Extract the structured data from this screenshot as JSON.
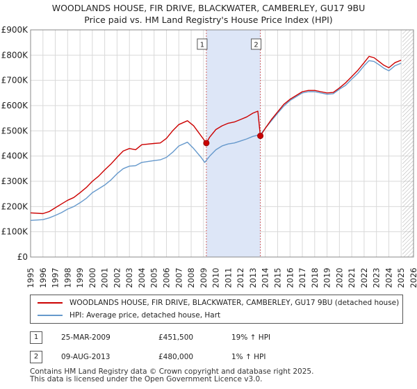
{
  "chart_data": {
    "type": "line",
    "title": "WOODLANDS HOUSE, FIR DRIVE, BLACKWATER, CAMBERLEY, GU17 9BU",
    "subtitle": "Price paid vs. HM Land Registry's House Price Index (HPI)",
    "xlim": [
      1995,
      2026
    ],
    "ylim": [
      0,
      900000
    ],
    "x_ticks": [
      "1995",
      "1996",
      "1997",
      "1998",
      "1999",
      "2000",
      "2001",
      "2002",
      "2003",
      "2004",
      "2005",
      "2006",
      "2007",
      "2008",
      "2009",
      "2010",
      "2011",
      "2012",
      "2013",
      "2014",
      "2015",
      "2016",
      "2017",
      "2018",
      "2019",
      "2020",
      "2021",
      "2022",
      "2023",
      "2024",
      "2025",
      "2026"
    ],
    "y_ticks": [
      {
        "value": 0,
        "label": "£0"
      },
      {
        "value": 100000,
        "label": "£100K"
      },
      {
        "value": 200000,
        "label": "£200K"
      },
      {
        "value": 300000,
        "label": "£300K"
      },
      {
        "value": 400000,
        "label": "£400K"
      },
      {
        "value": 500000,
        "label": "£500K"
      },
      {
        "value": 600000,
        "label": "£600K"
      },
      {
        "value": 700000,
        "label": "£700K"
      },
      {
        "value": 800000,
        "label": "£800K"
      },
      {
        "value": 900000,
        "label": "£900K"
      }
    ],
    "grid": true,
    "shaded_region": {
      "x0": 2009.23,
      "x1": 2013.6
    },
    "hatched_region": {
      "x0": 2025.1,
      "x1": 2026
    },
    "series": [
      {
        "name": "WOODLANDS HOUSE, FIR DRIVE, BLACKWATER, CAMBERLEY, GU17 9BU (detached house)",
        "color": "#cc0000",
        "points": [
          [
            1995,
            175000
          ],
          [
            1996,
            172000
          ],
          [
            1996.5,
            180000
          ],
          [
            1997,
            195000
          ],
          [
            1997.5,
            210000
          ],
          [
            1998,
            225000
          ],
          [
            1998.5,
            236000
          ],
          [
            1999,
            255000
          ],
          [
            1999.5,
            275000
          ],
          [
            2000,
            300000
          ],
          [
            2000.5,
            320000
          ],
          [
            2001,
            345000
          ],
          [
            2001.5,
            368000
          ],
          [
            2002,
            395000
          ],
          [
            2002.5,
            420000
          ],
          [
            2003,
            430000
          ],
          [
            2003.5,
            425000
          ],
          [
            2004,
            445000
          ],
          [
            2005,
            450000
          ],
          [
            2005.5,
            452000
          ],
          [
            2006,
            470000
          ],
          [
            2006.5,
            500000
          ],
          [
            2007,
            525000
          ],
          [
            2007.7,
            540000
          ],
          [
            2008.2,
            520000
          ],
          [
            2008.8,
            480000
          ],
          [
            2009.23,
            451500
          ],
          [
            2009.5,
            475000
          ],
          [
            2010,
            505000
          ],
          [
            2010.5,
            520000
          ],
          [
            2011,
            530000
          ],
          [
            2011.5,
            535000
          ],
          [
            2012,
            545000
          ],
          [
            2012.5,
            555000
          ],
          [
            2013,
            570000
          ],
          [
            2013.4,
            578000
          ],
          [
            2013.6,
            480000
          ],
          [
            2014,
            510000
          ],
          [
            2014.5,
            545000
          ],
          [
            2015,
            575000
          ],
          [
            2015.5,
            605000
          ],
          [
            2016,
            625000
          ],
          [
            2016.5,
            640000
          ],
          [
            2017,
            655000
          ],
          [
            2017.5,
            660000
          ],
          [
            2018,
            660000
          ],
          [
            2018.5,
            655000
          ],
          [
            2019,
            650000
          ],
          [
            2019.5,
            652000
          ],
          [
            2020,
            670000
          ],
          [
            2020.5,
            690000
          ],
          [
            2021,
            715000
          ],
          [
            2021.5,
            740000
          ],
          [
            2022,
            770000
          ],
          [
            2022.4,
            795000
          ],
          [
            2022.8,
            790000
          ],
          [
            2023.2,
            775000
          ],
          [
            2023.6,
            760000
          ],
          [
            2024,
            750000
          ],
          [
            2024.5,
            770000
          ],
          [
            2025.0,
            780000
          ]
        ]
      },
      {
        "name": "HPI: Average price, detached house, Hart",
        "color": "#6699cc",
        "points": [
          [
            1995,
            145000
          ],
          [
            1996,
            148000
          ],
          [
            1996.5,
            155000
          ],
          [
            1997,
            165000
          ],
          [
            1997.5,
            176000
          ],
          [
            1998,
            190000
          ],
          [
            1998.5,
            200000
          ],
          [
            1999,
            215000
          ],
          [
            1999.5,
            232000
          ],
          [
            2000,
            255000
          ],
          [
            2000.5,
            270000
          ],
          [
            2001,
            285000
          ],
          [
            2001.5,
            305000
          ],
          [
            2002,
            330000
          ],
          [
            2002.5,
            350000
          ],
          [
            2003,
            360000
          ],
          [
            2003.5,
            362000
          ],
          [
            2004,
            375000
          ],
          [
            2005,
            382000
          ],
          [
            2005.5,
            385000
          ],
          [
            2006,
            395000
          ],
          [
            2006.5,
            415000
          ],
          [
            2007,
            440000
          ],
          [
            2007.7,
            455000
          ],
          [
            2008.2,
            430000
          ],
          [
            2008.8,
            395000
          ],
          [
            2009.1,
            375000
          ],
          [
            2009.5,
            400000
          ],
          [
            2010,
            425000
          ],
          [
            2010.5,
            440000
          ],
          [
            2011,
            448000
          ],
          [
            2011.5,
            452000
          ],
          [
            2012,
            460000
          ],
          [
            2012.5,
            468000
          ],
          [
            2013,
            478000
          ],
          [
            2013.6,
            485000
          ],
          [
            2014,
            510000
          ],
          [
            2014.5,
            540000
          ],
          [
            2015,
            570000
          ],
          [
            2015.5,
            598000
          ],
          [
            2016,
            620000
          ],
          [
            2016.5,
            635000
          ],
          [
            2017,
            650000
          ],
          [
            2017.5,
            655000
          ],
          [
            2018,
            655000
          ],
          [
            2018.5,
            650000
          ],
          [
            2019,
            645000
          ],
          [
            2019.5,
            647000
          ],
          [
            2020,
            665000
          ],
          [
            2020.5,
            680000
          ],
          [
            2021,
            705000
          ],
          [
            2021.5,
            728000
          ],
          [
            2022,
            758000
          ],
          [
            2022.4,
            778000
          ],
          [
            2022.8,
            775000
          ],
          [
            2023.2,
            762000
          ],
          [
            2023.6,
            748000
          ],
          [
            2024,
            738000
          ],
          [
            2024.5,
            758000
          ],
          [
            2025.0,
            768000
          ]
        ]
      }
    ],
    "markers": [
      {
        "label": "1",
        "x": 2009.23,
        "y": 451500
      },
      {
        "label": "2",
        "x": 2013.6,
        "y": 480000
      }
    ]
  },
  "legend": {
    "red_label": "WOODLANDS HOUSE, FIR DRIVE, BLACKWATER, CAMBERLEY, GU17 9BU (detached house)",
    "blue_label": "HPI: Average price, detached house, Hart"
  },
  "transactions": [
    {
      "num": "1",
      "date": "25-MAR-2009",
      "price": "£451,500",
      "hpi": "19% ↑ HPI"
    },
    {
      "num": "2",
      "date": "09-AUG-2013",
      "price": "£480,000",
      "hpi": "1% ↑ HPI"
    }
  ],
  "footer": {
    "line1": "Contains HM Land Registry data © Crown copyright and database right 2025.",
    "line2": "This data is licensed under the Open Government Licence v3.0."
  }
}
